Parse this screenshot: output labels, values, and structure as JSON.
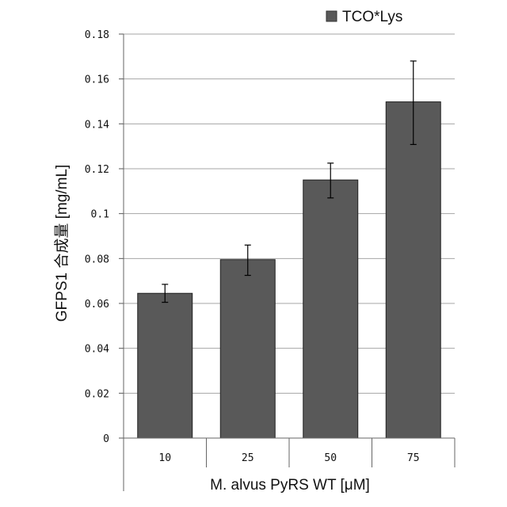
{
  "chart_data": {
    "type": "bar",
    "categories": [
      "10",
      "25",
      "50",
      "75"
    ],
    "series": [
      {
        "name": "TCO*Lys",
        "values": [
          0.0645,
          0.0795,
          0.115,
          0.1498
        ],
        "error_low": [
          0.0605,
          0.0725,
          0.107,
          0.1308
        ],
        "error_high": [
          0.0685,
          0.086,
          0.1225,
          0.168
        ],
        "color": "#595959"
      }
    ],
    "ylim": [
      0,
      0.18
    ],
    "yticks": [
      0,
      0.02,
      0.04,
      0.06,
      0.08,
      0.1,
      0.12,
      0.14,
      0.16,
      0.18
    ],
    "ytick_labels": [
      "0",
      "0.02",
      "0.04",
      "0.06",
      "0.08",
      "0.1",
      "0.12",
      "0.14",
      "0.16",
      "0.18"
    ],
    "ylabel": "GFPS1 合成量 [mg/mL]",
    "xlabel": "M. alvus PyRS WT [μM]",
    "grid": true,
    "gridline_color": "#a6a6a6",
    "legend_position": "top-right"
  }
}
